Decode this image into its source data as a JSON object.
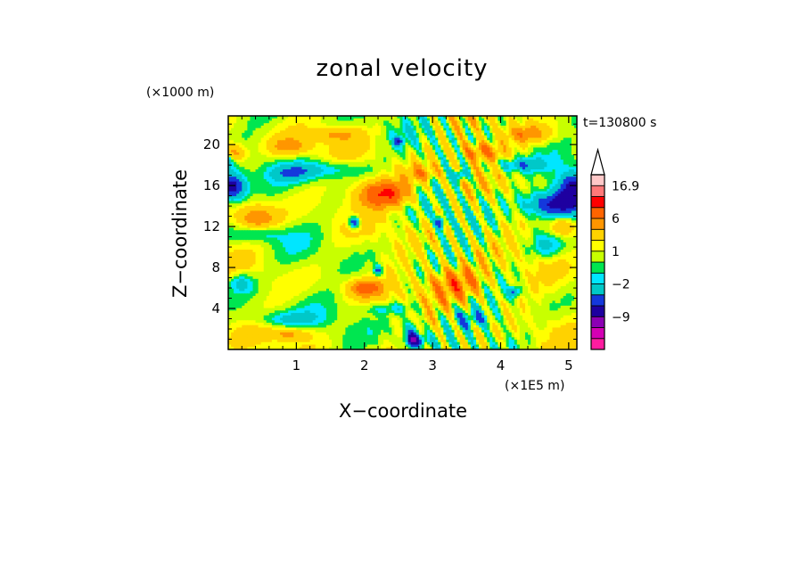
{
  "chart_data": {
    "type": "heatmap",
    "title": "zonal velocity",
    "xlabel": "X−coordinate",
    "ylabel": "Z−coordinate",
    "x_units": "(×1E5 m)",
    "z_units": "(×1000 m)",
    "time_label": "t=130800 s",
    "xlim": [
      0,
      5.12
    ],
    "ylim": [
      0,
      22.8
    ],
    "x_ticks": [
      "1",
      "2",
      "3",
      "4",
      "5"
    ],
    "x_tick_values": [
      1,
      2,
      3,
      4,
      5
    ],
    "y_ticks": [
      "4",
      "8",
      "12",
      "16",
      "20"
    ],
    "y_tick_values": [
      4,
      8,
      12,
      16,
      20
    ],
    "colorbar": {
      "labels": [
        "16.9",
        "6",
        "1",
        "−2",
        "−9"
      ],
      "label_values": [
        16.9,
        6,
        1,
        -2,
        -9
      ],
      "levels": [
        -13,
        -11,
        -9,
        -6,
        -4,
        -2,
        -1,
        0,
        1,
        2,
        4,
        6,
        9,
        12,
        16.9
      ],
      "colors": [
        "#ff1ca0",
        "#d400b4",
        "#8c00b4",
        "#1e00a0",
        "#1438dc",
        "#00c8c8",
        "#00e6ff",
        "#00e650",
        "#c8ff00",
        "#ffff00",
        "#ffd200",
        "#ff9600",
        "#ff6400",
        "#ff0000",
        "#ff7878",
        "#ffc8c8"
      ],
      "extend": "max"
    }
  }
}
